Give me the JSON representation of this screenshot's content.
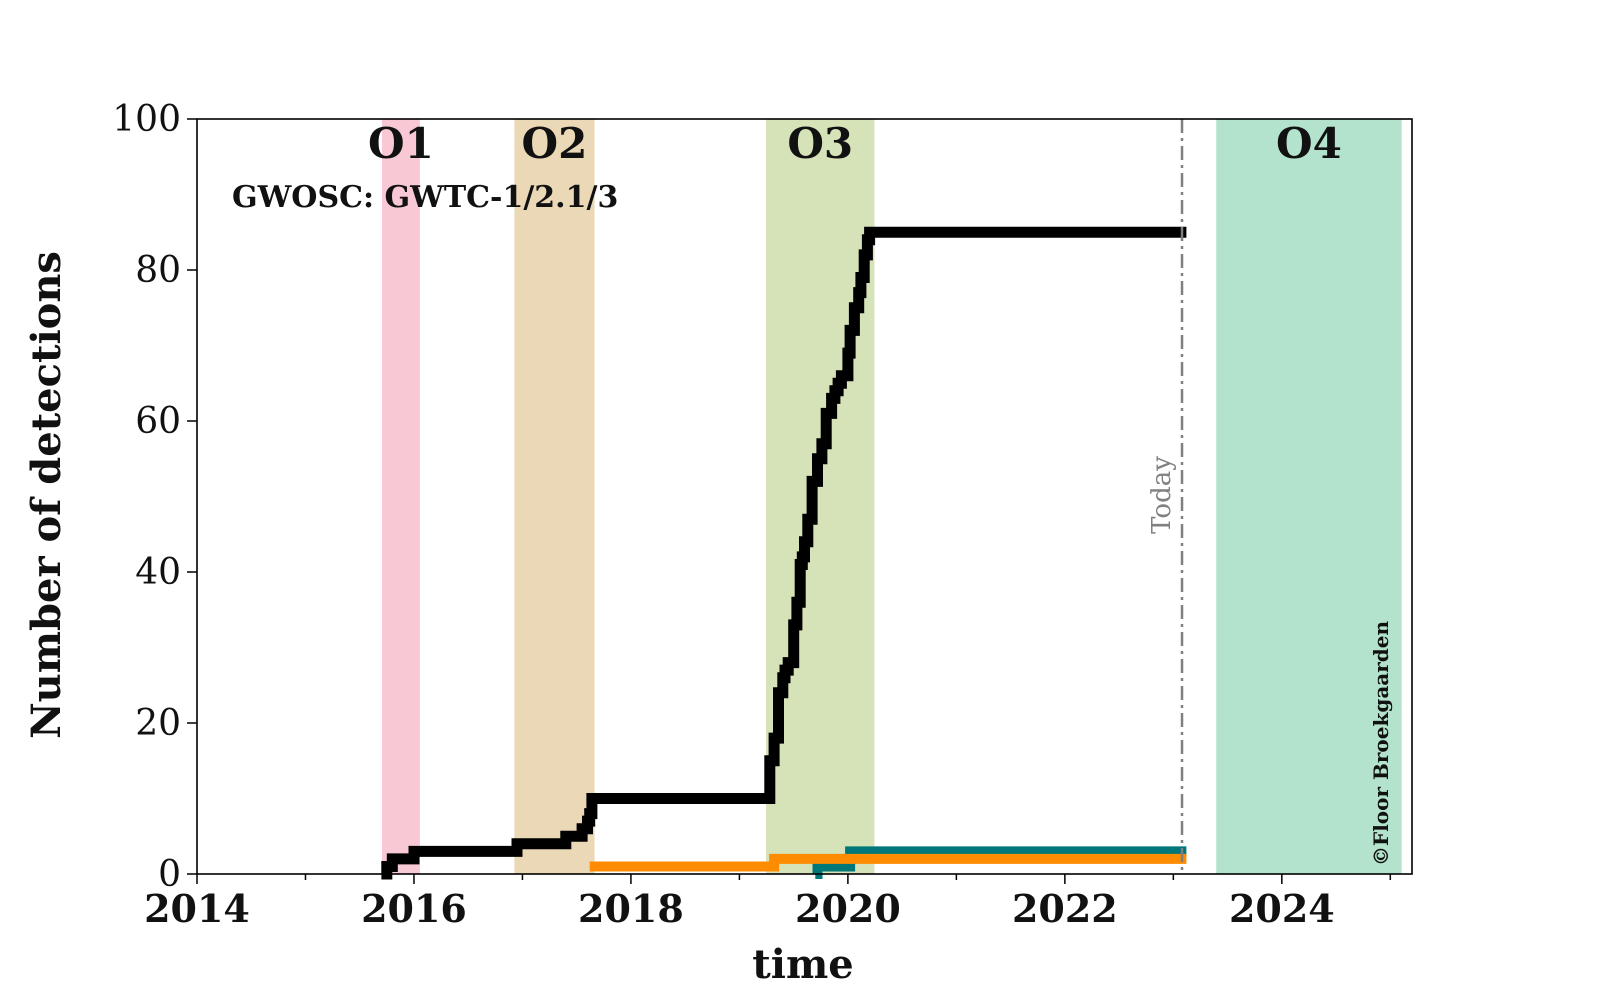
{
  "chart_data": {
    "type": "line",
    "title": "",
    "xlabel": "time",
    "ylabel": "Number of detections",
    "xlim": [
      2014.0,
      2025.2
    ],
    "ylim": [
      0,
      100
    ],
    "x_ticks": [
      2014,
      2016,
      2018,
      2020,
      2022,
      2024
    ],
    "x_tick_labels": [
      "2014",
      "2016",
      "2018",
      "2020",
      "2022",
      "2024"
    ],
    "y_ticks": [
      0,
      20,
      40,
      60,
      80,
      100
    ],
    "y_tick_labels": [
      "0",
      "20",
      "40",
      "60",
      "80",
      "100"
    ],
    "annotation": "GWOSC: GWTC-1/2.1/3",
    "credit": "©Floor Broekgaarden",
    "observing_runs": [
      {
        "label": "O1",
        "start": 2015.71,
        "end": 2016.05,
        "color": "#f8c8d4"
      },
      {
        "label": "O2",
        "start": 2016.93,
        "end": 2017.66,
        "color": "#ebd8b6"
      },
      {
        "label": "O3",
        "start": 2019.25,
        "end": 2020.24,
        "color": "#d6e2b8"
      },
      {
        "label": "O4",
        "start": 2023.4,
        "end": 2025.1,
        "color": "#b3e3cc"
      }
    ],
    "today": {
      "label": "Today",
      "x": 2023.08,
      "color": "#808080"
    },
    "series": [
      {
        "color": "#000000",
        "x": [
          2015.7,
          2015.75,
          2015.8,
          2016.0,
          2016.95,
          2017.4,
          2017.55,
          2017.6,
          2017.62,
          2017.64,
          2019.25,
          2019.28,
          2019.32,
          2019.36,
          2019.4,
          2019.42,
          2019.45,
          2019.5,
          2019.53,
          2019.56,
          2019.58,
          2019.6,
          2019.63,
          2019.67,
          2019.7,
          2019.72,
          2019.76,
          2019.8,
          2019.85,
          2019.88,
          2019.91,
          2019.94,
          2019.97,
          2020.0,
          2020.02,
          2020.06,
          2020.1,
          2020.12,
          2020.15,
          2020.18,
          2020.2,
          2020.22,
          2020.24,
          2023.12
        ],
        "y": [
          0,
          1,
          2,
          3,
          4,
          5,
          6,
          7,
          8,
          10,
          10,
          15,
          18,
          24,
          26,
          27,
          28,
          33,
          36,
          41,
          42,
          44,
          47,
          52,
          52,
          55,
          57,
          61,
          63,
          64,
          65,
          66,
          66,
          69,
          72,
          75,
          77,
          79,
          82,
          84,
          85,
          85,
          85,
          85
        ]
      },
      {
        "color": "#ff8c00",
        "x": [
          2017.62,
          2019.3,
          2019.32,
          2023.12
        ],
        "y": [
          1,
          1,
          2,
          2
        ]
      },
      {
        "color": "#00787a",
        "x": [
          2019.7,
          2019.72,
          2020.0,
          2020.02,
          2023.12
        ],
        "y": [
          0,
          1,
          1,
          3,
          3
        ]
      }
    ]
  }
}
